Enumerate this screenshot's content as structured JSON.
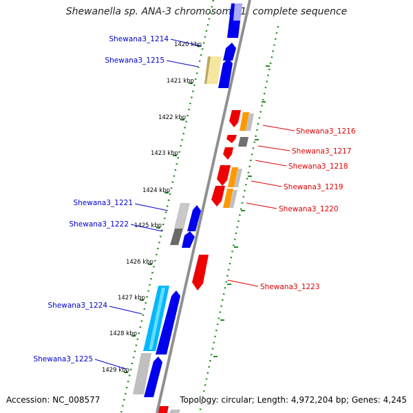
{
  "title": "Shewanella sp. ANA-3 chromosome 1, complete sequence",
  "accession": "Accession: NC_008577",
  "summary": "Topology: circular; Length: 4,972,204 bp; Genes: 4,245",
  "colors": {
    "plus_strand_gene": "#0000ee",
    "minus_strand_gene": "#ee0000",
    "plus_label": "#0000cc",
    "minus_label": "#dd0000",
    "axis": "#909090",
    "ruler": "#228b22"
  },
  "ticks": [
    {
      "label": "1420 kbp"
    },
    {
      "label": "1421 kbp"
    },
    {
      "label": "1422 kbp"
    },
    {
      "label": "1423 kbp"
    },
    {
      "label": "1424 kbp"
    },
    {
      "label": "1425 kbp"
    },
    {
      "label": "1426 kbp"
    },
    {
      "label": "1427 kbp"
    },
    {
      "label": "1428 kbp"
    },
    {
      "label": "1429 kbp"
    }
  ],
  "labels_plus": [
    {
      "name": "Shewana3_1214"
    },
    {
      "name": "Shewana3_1215"
    },
    {
      "name": "Shewana3_1221"
    },
    {
      "name": "Shewana3_1222"
    },
    {
      "name": "Shewana3_1224"
    },
    {
      "name": "Shewana3_1225"
    }
  ],
  "labels_minus": [
    {
      "name": "Shewana3_1216"
    },
    {
      "name": "Shewana3_1217"
    },
    {
      "name": "Shewana3_1218"
    },
    {
      "name": "Shewana3_1219"
    },
    {
      "name": "Shewana3_1220"
    },
    {
      "name": "Shewana3_1223"
    }
  ]
}
